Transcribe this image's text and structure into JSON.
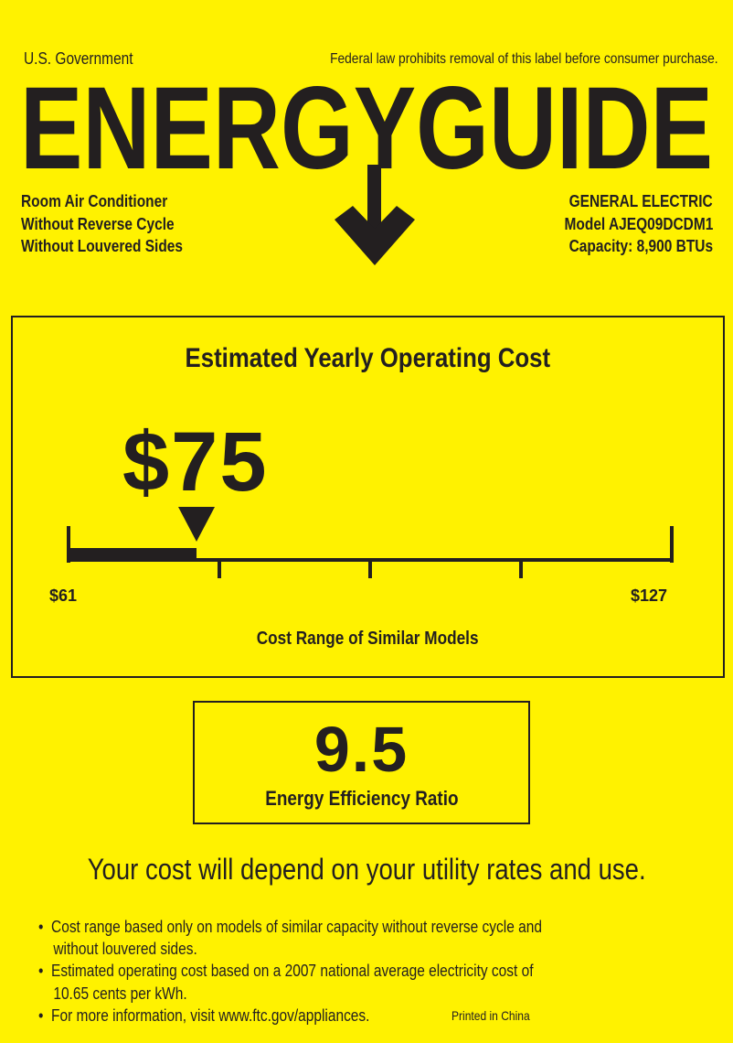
{
  "header": {
    "left_note": "U.S. Government",
    "right_note": "Federal law prohibits removal of this label before consumer purchase.",
    "logo_text": "ENERGYGUIDE"
  },
  "product": {
    "lines": [
      "Room Air Conditioner",
      "Without Reverse Cycle",
      "Without Louvered Sides"
    ]
  },
  "manufacturer": {
    "brand": "GENERAL ELECTRIC",
    "model": "Model AJEQ09DCDM1",
    "capacity": "Capacity: 8,900 BTUs"
  },
  "cost": {
    "title": "Estimated Yearly Operating Cost",
    "value": "$75",
    "value_number": 75,
    "range_min_label": "$61",
    "range_max_label": "$127",
    "range_min": 61,
    "range_max": 127,
    "range_caption": "Cost Range of Similar Models"
  },
  "efficiency": {
    "value": "9.5",
    "label": "Energy Efficiency Ratio"
  },
  "disclaimer": "Your cost will depend on your utility rates and use.",
  "notes": [
    [
      "Cost range based only on models of similar capacity without reverse cycle and",
      "without louvered sides."
    ],
    [
      "Estimated operating cost based on a 2007 national average electricity cost of",
      "10.65 cents per kWh."
    ],
    [
      "For more information, visit www.ftc.gov/appliances."
    ]
  ],
  "printed_in": "Printed in China",
  "colors": {
    "background": "#fff200",
    "ink": "#231f20"
  }
}
